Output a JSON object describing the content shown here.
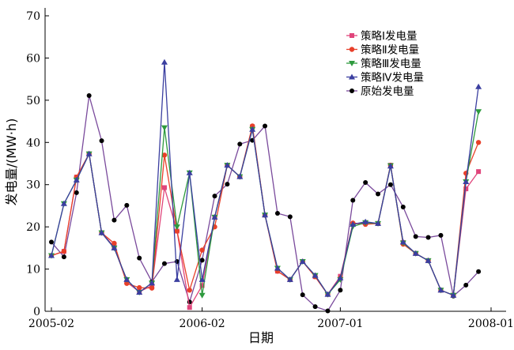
{
  "chart_data": {
    "type": "line",
    "title": "",
    "xlabel": "日期",
    "ylabel": "发电量/(MW·h)",
    "ylim": [
      0,
      70
    ],
    "yticks": [
      0,
      10,
      20,
      30,
      40,
      50,
      60,
      70
    ],
    "x_tick_labels": [
      "2005-02",
      "2006-02",
      "2007-01",
      "2008-01"
    ],
    "x_tick_months": [
      0,
      12,
      23,
      35
    ],
    "grid": false,
    "legend_position": "top-right",
    "months": [
      0,
      1,
      2,
      3,
      4,
      5,
      6,
      7,
      8,
      9,
      10,
      11,
      12,
      13,
      14,
      15,
      16,
      17,
      18,
      19,
      20,
      21,
      22,
      23,
      24,
      25,
      26,
      27,
      28,
      29,
      30,
      31,
      32,
      33,
      34,
      35
    ],
    "series": [
      {
        "name": "策略Ⅰ发电量",
        "color": "#e0457b",
        "marker": "square",
        "values": [
          13.2,
          14.2,
          31.8,
          37.3,
          18.6,
          15.3,
          6.9,
          4.6,
          6.1,
          29.3,
          19.0,
          0.9,
          6.1,
          22.3,
          34.6,
          31.9,
          43.7,
          22.8,
          9.5,
          7.5,
          11.8,
          8.2,
          4.0,
          8.3,
          20.6,
          21.0,
          20.8,
          34.6,
          16.3,
          13.7,
          12.0,
          5.0,
          3.8,
          29.0,
          33.1,
          null
        ]
      },
      {
        "name": "策略Ⅱ发电量",
        "color": "#e8402a",
        "marker": "circle",
        "values": [
          13.2,
          14.2,
          31.8,
          37.3,
          18.6,
          16.1,
          6.6,
          5.6,
          5.5,
          37.0,
          19.0,
          5.0,
          14.5,
          20.0,
          34.6,
          31.9,
          43.9,
          22.8,
          9.5,
          7.5,
          11.8,
          8.2,
          4.0,
          7.9,
          20.9,
          20.6,
          20.8,
          34.6,
          15.9,
          13.7,
          12.0,
          5.0,
          3.8,
          32.7,
          40.0,
          null
        ]
      },
      {
        "name": "策略Ⅲ发电量",
        "color": "#2e9a3e",
        "marker": "triangle-down",
        "values": [
          13.2,
          25.5,
          31.1,
          37.3,
          18.6,
          15.0,
          7.5,
          4.5,
          6.7,
          43.5,
          20.0,
          32.8,
          3.8,
          22.3,
          34.6,
          31.9,
          43.1,
          22.8,
          10.2,
          7.5,
          11.8,
          8.5,
          4.0,
          7.5,
          20.1,
          21.0,
          20.8,
          34.5,
          16.2,
          13.7,
          12.0,
          5.0,
          3.8,
          30.7,
          47.3,
          null
        ]
      },
      {
        "name": "策略Ⅳ发电量",
        "color": "#3b3fa0",
        "marker": "triangle-up",
        "values": [
          13.2,
          25.5,
          31.1,
          37.3,
          18.6,
          15.0,
          7.5,
          4.5,
          6.7,
          59.0,
          7.5,
          32.8,
          7.5,
          22.3,
          34.6,
          31.9,
          43.1,
          22.8,
          10.2,
          7.5,
          11.8,
          8.5,
          4.0,
          7.9,
          20.6,
          21.2,
          20.8,
          34.4,
          16.4,
          13.7,
          12.0,
          5.0,
          3.8,
          30.7,
          53.2,
          null
        ]
      },
      {
        "name": "原始发电量",
        "color": "#000000",
        "line_color": "#7a4a9c",
        "marker": "dot",
        "values": [
          16.4,
          12.9,
          28.1,
          51.1,
          40.4,
          21.6,
          25.1,
          12.6,
          7.0,
          11.3,
          11.8,
          2.2,
          12.1,
          27.3,
          30.1,
          39.6,
          40.5,
          43.9,
          23.2,
          22.4,
          3.9,
          1.1,
          0.1,
          5.0,
          26.3,
          30.5,
          27.8,
          30.0,
          24.7,
          17.7,
          17.5,
          18.0,
          3.6,
          6.2,
          9.4,
          null
        ]
      }
    ]
  }
}
